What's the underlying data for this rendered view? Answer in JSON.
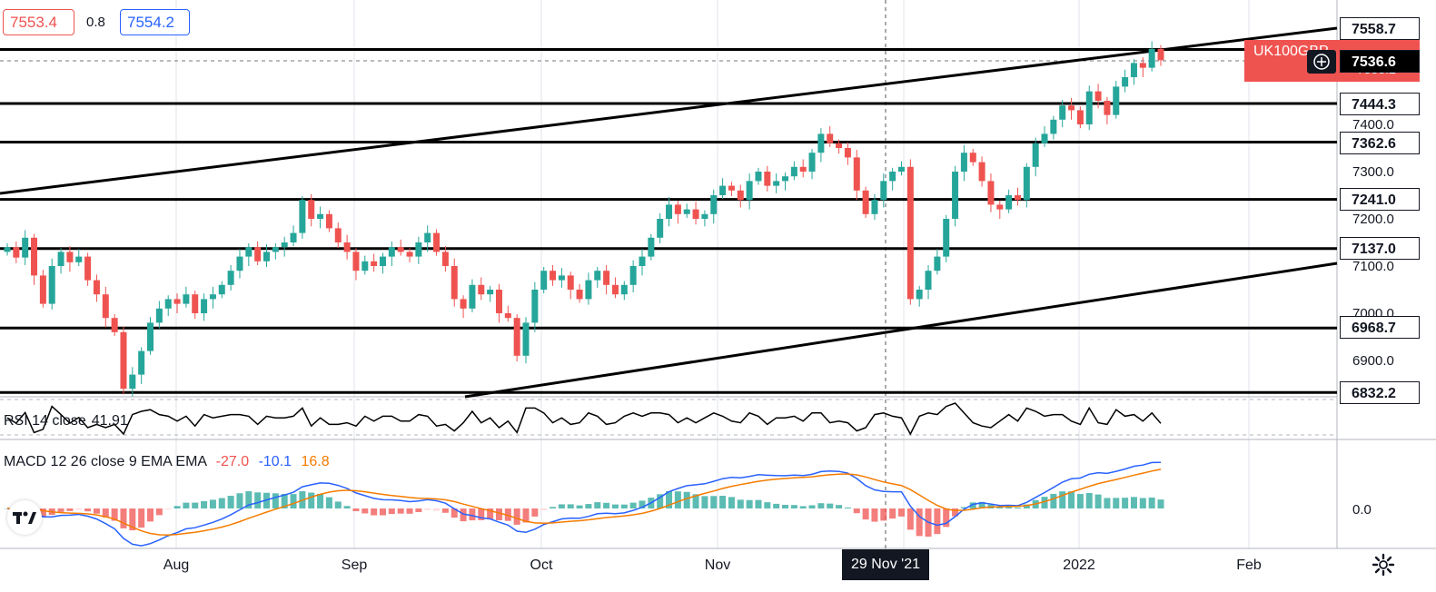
{
  "quote": {
    "bid": "7553.4",
    "spread": "0.8",
    "ask": "7554.2"
  },
  "symbol": {
    "name": "UK100GBP",
    "sub_value": "7553.2",
    "crosshair_price": "7536.6"
  },
  "rsi": {
    "label": "RSI 14 close",
    "value": "41.91"
  },
  "macd": {
    "label": "MACD 12 26 close 9 EMA EMA",
    "hist": "-27.0",
    "macd": "-10.1",
    "signal": "16.8",
    "colors": {
      "hist": "#ef5350",
      "macd": "#2962ff",
      "signal": "#f57c00"
    }
  },
  "price_axis": {
    "ticks": [
      "7400.0",
      "7300.0",
      "7200.0",
      "7100.0",
      "7000.0",
      "6900.0"
    ],
    "macd_tick": "0.0"
  },
  "level_tags": [
    "7558.7",
    "7444.3",
    "7362.6",
    "7241.0",
    "7137.0",
    "6968.7",
    "6832.2"
  ],
  "time_axis": {
    "labels": [
      "Aug",
      "Sep",
      "Oct",
      "Nov",
      "2022",
      "Feb"
    ],
    "cursor": "29 Nov '21"
  },
  "colors": {
    "up": "#26a69a",
    "down": "#ef5350",
    "line": "#000000",
    "grid": "#e0e3eb"
  },
  "chart_data": {
    "type": "candlestick",
    "title": "",
    "horizontal_levels": [
      7558.7,
      7444.3,
      7362.6,
      7241.0,
      7137.0,
      6968.7,
      6832.2
    ],
    "closes": [
      7140,
      7118,
      7160,
      7080,
      7020,
      7100,
      7130,
      7108,
      7120,
      7070,
      7040,
      6990,
      6960,
      6840,
      6870,
      6920,
      6980,
      7010,
      7030,
      7020,
      7040,
      7000,
      7030,
      7040,
      7060,
      7090,
      7120,
      7140,
      7110,
      7130,
      7140,
      7150,
      7170,
      7240,
      7200,
      7210,
      7180,
      7150,
      7130,
      7090,
      7110,
      7100,
      7120,
      7140,
      7130,
      7120,
      7150,
      7170,
      7130,
      7100,
      7030,
      7010,
      7060,
      7040,
      7050,
      7000,
      6990,
      6910,
      6980,
      7050,
      7090,
      7070,
      7080,
      7050,
      7030,
      7070,
      7090,
      7060,
      7040,
      7060,
      7100,
      7120,
      7160,
      7200,
      7230,
      7210,
      7220,
      7200,
      7210,
      7250,
      7270,
      7260,
      7240,
      7280,
      7300,
      7270,
      7280,
      7290,
      7310,
      7300,
      7340,
      7380,
      7360,
      7350,
      7330,
      7260,
      7210,
      7240,
      7280,
      7300,
      7310,
      7030,
      7050,
      7090,
      7120,
      7200,
      7300,
      7340,
      7320,
      7280,
      7230,
      7220,
      7250,
      7240,
      7310,
      7360,
      7380,
      7410,
      7440,
      7430,
      7400,
      7470,
      7450,
      7420,
      7480,
      7500,
      7530,
      7520,
      7560,
      7536
    ]
  }
}
